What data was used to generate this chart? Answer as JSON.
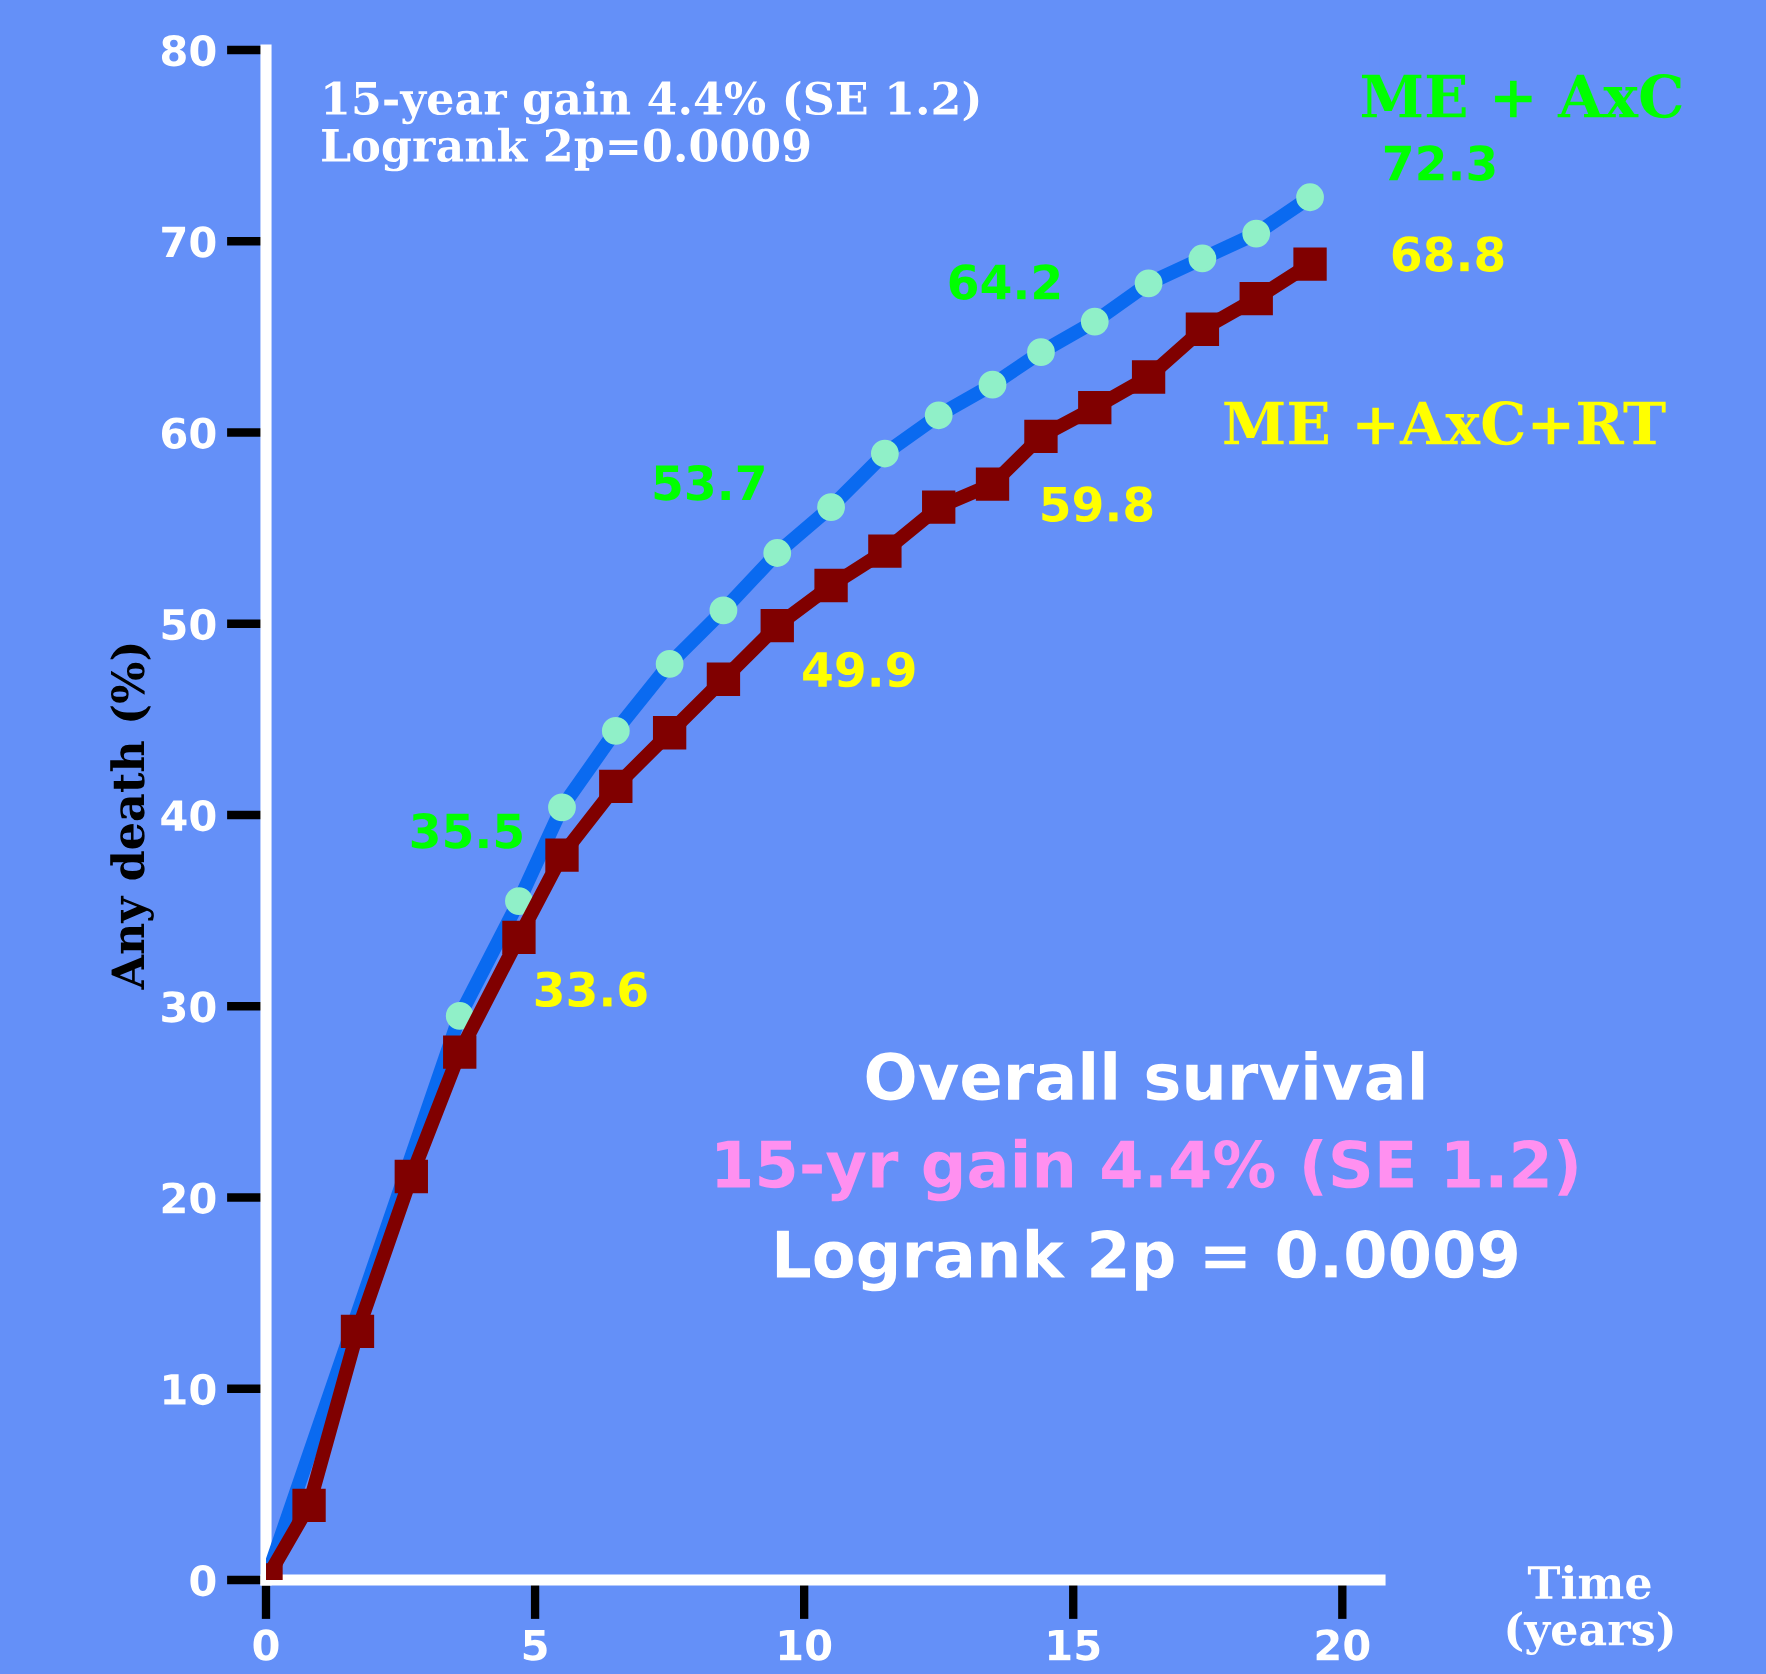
{
  "chart_data": {
    "type": "line",
    "ylabel": "Any death (%)",
    "xlabel": "Time (years)",
    "xlim": [
      0,
      20.7
    ],
    "ylim": [
      0,
      80
    ],
    "xticks": [
      0,
      5,
      10,
      15,
      20
    ],
    "yticks": [
      0,
      10,
      20,
      30,
      40,
      50,
      60,
      70,
      80
    ],
    "grid": false,
    "legend": false,
    "x": [
      0,
      0.8,
      1.7,
      2.7,
      3.6,
      4.7,
      5.5,
      6.5,
      7.5,
      8.5,
      9.5,
      10.5,
      11.5,
      12.5,
      13.5,
      14.4,
      15.4,
      16.4,
      17.4,
      18.4,
      19.4
    ],
    "series": [
      {
        "name": "ME + AxC",
        "color": "#0a6af0",
        "marker": "circle",
        "values": [
          0,
          null,
          null,
          null,
          29.5,
          35.5,
          40.4,
          44.4,
          47.9,
          50.7,
          53.7,
          56.1,
          58.9,
          60.9,
          62.5,
          64.2,
          65.8,
          67.8,
          69.1,
          70.4,
          72.3
        ]
      },
      {
        "name": "ME +AxC+RT",
        "color": "#800000",
        "marker": "square",
        "values": [
          0,
          3.9,
          13.0,
          21.1,
          27.6,
          33.6,
          37.9,
          41.5,
          44.3,
          47.1,
          49.9,
          52.0,
          53.8,
          56.1,
          57.3,
          59.8,
          61.3,
          62.9,
          65.4,
          67.0,
          68.8
        ]
      }
    ],
    "annotations": [
      "15-year gain 4.4% (SE 1.2)\nLogrank 2p=0.0009",
      "Overall survival",
      "15-yr gain 4.4% (SE 1.2)",
      "Logrank 2p = 0.0009",
      {
        "text": "35.5",
        "x": 4.7,
        "y": 35.5
      },
      {
        "text": "33.6",
        "x": 4.7,
        "y": 33.6
      },
      {
        "text": "53.7",
        "x": 9.5,
        "y": 53.7
      },
      {
        "text": "49.9",
        "x": 9.5,
        "y": 49.9
      },
      {
        "text": "64.2",
        "x": 14.4,
        "y": 64.2
      },
      {
        "text": "59.8",
        "x": 14.4,
        "y": 59.8
      },
      {
        "text": "72.3",
        "x": 19.4,
        "y": 72.3
      },
      {
        "text": "68.8",
        "x": 19.4,
        "y": 68.8
      }
    ]
  }
}
